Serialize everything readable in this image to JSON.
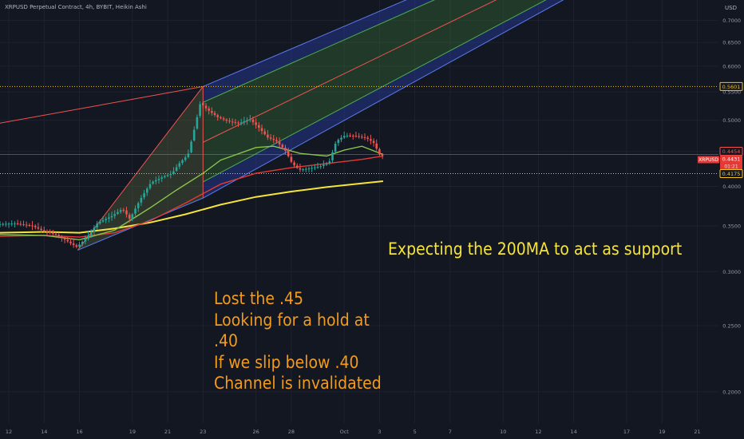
{
  "header": {
    "symbol_line": "XRPUSD Perpetual Contract, 4h, BYBIT, Heikin Ashi",
    "currency": "USD"
  },
  "annotations": {
    "support_note": "Expecting the 200MA to act as support",
    "lines": [
      "Lost the .45",
      "Looking for a hold at",
      ".40",
      "If we slip below .40",
      "Channel is invalidated"
    ]
  },
  "price_scale_tags": [
    {
      "label": "0.5601",
      "style": "outline",
      "color": "#f5c11f"
    },
    {
      "label": "0.4454",
      "style": "outline",
      "color": "#ef5350"
    },
    {
      "label": "0.4431",
      "style": "fill",
      "color": "#e53935",
      "sub": "01:21",
      "symbol": "XRPUSD"
    },
    {
      "label": "0.4175",
      "style": "outline",
      "color": "#f5c11f"
    }
  ],
  "chart_data": {
    "type": "candlestick",
    "y_scale": "log",
    "ylim": [
      0.18,
      0.75
    ],
    "y_ticks": [
      0.2,
      0.25,
      0.3,
      0.35,
      0.4,
      0.45,
      0.5,
      0.55,
      0.6,
      0.65,
      0.7
    ],
    "y_tick_labels": [
      "0.2000",
      "0.2500",
      "0.3000",
      "0.3500",
      "0.4000",
      "",
      "0.5000",
      "0.5500",
      "0.6000",
      "0.6500",
      "0.7000"
    ],
    "x_ticks": [
      {
        "label": "12",
        "day": 12
      },
      {
        "label": "14",
        "day": 14
      },
      {
        "label": "16",
        "day": 16
      },
      {
        "label": "19",
        "day": 19
      },
      {
        "label": "21",
        "day": 21
      },
      {
        "label": "23",
        "day": 23
      },
      {
        "label": "26",
        "day": 26
      },
      {
        "label": "28",
        "day": 28
      },
      {
        "label": "Oct",
        "day": 31
      },
      {
        "label": "3",
        "day": 33
      },
      {
        "label": "5",
        "day": 35
      },
      {
        "label": "7",
        "day": 37
      },
      {
        "label": "10",
        "day": 40
      },
      {
        "label": "12",
        "day": 42
      },
      {
        "label": "14",
        "day": 44
      },
      {
        "label": "17",
        "day": 47
      },
      {
        "label": "19",
        "day": 49
      },
      {
        "label": "21",
        "day": 51
      }
    ],
    "xlim_days": [
      11.5,
      52.2
    ],
    "horizontal_levels": [
      {
        "value": 0.5601,
        "style": "dotted",
        "color": "#f5c11f"
      },
      {
        "value": 0.4175,
        "style": "dotted",
        "color": "#f5c11f"
      },
      {
        "value": 0.4454,
        "style": "solid",
        "color": "#ef5350"
      }
    ],
    "pitchfork": {
      "pivot": {
        "day": 15.9,
        "price": 0.3225
      },
      "high": {
        "day": 23.0,
        "price": 0.5601
      },
      "low": {
        "day": 23.0,
        "price": 0.3845
      },
      "end_day": 52.2,
      "lines": [
        {
          "offset": 0.5601,
          "color": "#5b7cf0"
        },
        {
          "offset": 0.531,
          "color": "#4caf50"
        },
        {
          "offset": 0.4641,
          "color": "#ef5350"
        },
        {
          "offset": 0.406,
          "color": "#4caf50"
        },
        {
          "offset": 0.3845,
          "color": "#5b7cf0"
        }
      ],
      "fills": [
        "rgba(41,65,175,0.42)",
        "rgba(56,110,52,0.40)",
        "rgba(56,110,52,0.40)",
        "rgba(41,65,175,0.42)"
      ],
      "left_fill": "rgba(95,105,60,0.35)",
      "upper_red_line": {
        "from": {
          "day": 11.5,
          "price": 0.495
        },
        "to": {
          "day": 23.0,
          "price": 0.5601
        }
      }
    },
    "moving_averages": [
      {
        "name": "MA 200",
        "color": "#f5e43c",
        "points": [
          [
            11.5,
            0.342
          ],
          [
            14,
            0.343
          ],
          [
            16,
            0.342
          ],
          [
            18,
            0.347
          ],
          [
            20,
            0.354
          ],
          [
            22,
            0.364
          ],
          [
            24,
            0.376
          ],
          [
            26,
            0.386
          ],
          [
            28,
            0.393
          ],
          [
            30,
            0.399
          ],
          [
            32,
            0.404
          ],
          [
            33.2,
            0.407
          ]
        ]
      },
      {
        "name": "MA",
        "color": "#e53935",
        "points": [
          [
            11.5,
            0.338
          ],
          [
            14,
            0.339
          ],
          [
            16,
            0.337
          ],
          [
            18,
            0.342
          ],
          [
            20,
            0.356
          ],
          [
            22,
            0.378
          ],
          [
            24,
            0.403
          ],
          [
            26,
            0.418
          ],
          [
            28,
            0.426
          ],
          [
            30,
            0.432
          ],
          [
            32,
            0.438
          ],
          [
            33.2,
            0.4431
          ]
        ]
      },
      {
        "name": "MA",
        "color": "#8bc34a",
        "points": [
          [
            11.5,
            0.34
          ],
          [
            14,
            0.339
          ],
          [
            16,
            0.334
          ],
          [
            18,
            0.345
          ],
          [
            20,
            0.372
          ],
          [
            21.5,
            0.395
          ],
          [
            23,
            0.418
          ],
          [
            24,
            0.437
          ],
          [
            26,
            0.456
          ],
          [
            27,
            0.458
          ],
          [
            28.5,
            0.447
          ],
          [
            30,
            0.443
          ],
          [
            31,
            0.452
          ],
          [
            32,
            0.458
          ],
          [
            33.2,
            0.4454
          ]
        ]
      }
    ],
    "price_path": [
      [
        11.5,
        0.352
      ],
      [
        12.5,
        0.353
      ],
      [
        13.5,
        0.35
      ],
      [
        14,
        0.345
      ],
      [
        14.8,
        0.34
      ],
      [
        15.5,
        0.332
      ],
      [
        16,
        0.326
      ],
      [
        16.6,
        0.337
      ],
      [
        17.2,
        0.354
      ],
      [
        18,
        0.362
      ],
      [
        18.6,
        0.371
      ],
      [
        19,
        0.358
      ],
      [
        19.6,
        0.383
      ],
      [
        20.2,
        0.405
      ],
      [
        20.8,
        0.412
      ],
      [
        21.4,
        0.418
      ],
      [
        21.8,
        0.432
      ],
      [
        22.3,
        0.445
      ],
      [
        22.7,
        0.49
      ],
      [
        23.0,
        0.53
      ],
      [
        23.4,
        0.518
      ],
      [
        24,
        0.505
      ],
      [
        24.6,
        0.498
      ],
      [
        25.2,
        0.495
      ],
      [
        25.8,
        0.502
      ],
      [
        26.3,
        0.488
      ],
      [
        26.8,
        0.472
      ],
      [
        27.3,
        0.466
      ],
      [
        27.8,
        0.452
      ],
      [
        28.2,
        0.432
      ],
      [
        28.6,
        0.423
      ],
      [
        29.2,
        0.425
      ],
      [
        29.8,
        0.428
      ],
      [
        30.3,
        0.434
      ],
      [
        30.7,
        0.466
      ],
      [
        31.2,
        0.475
      ],
      [
        31.8,
        0.474
      ],
      [
        32.4,
        0.471
      ],
      [
        32.8,
        0.464
      ],
      [
        33.2,
        0.4431
      ]
    ]
  }
}
